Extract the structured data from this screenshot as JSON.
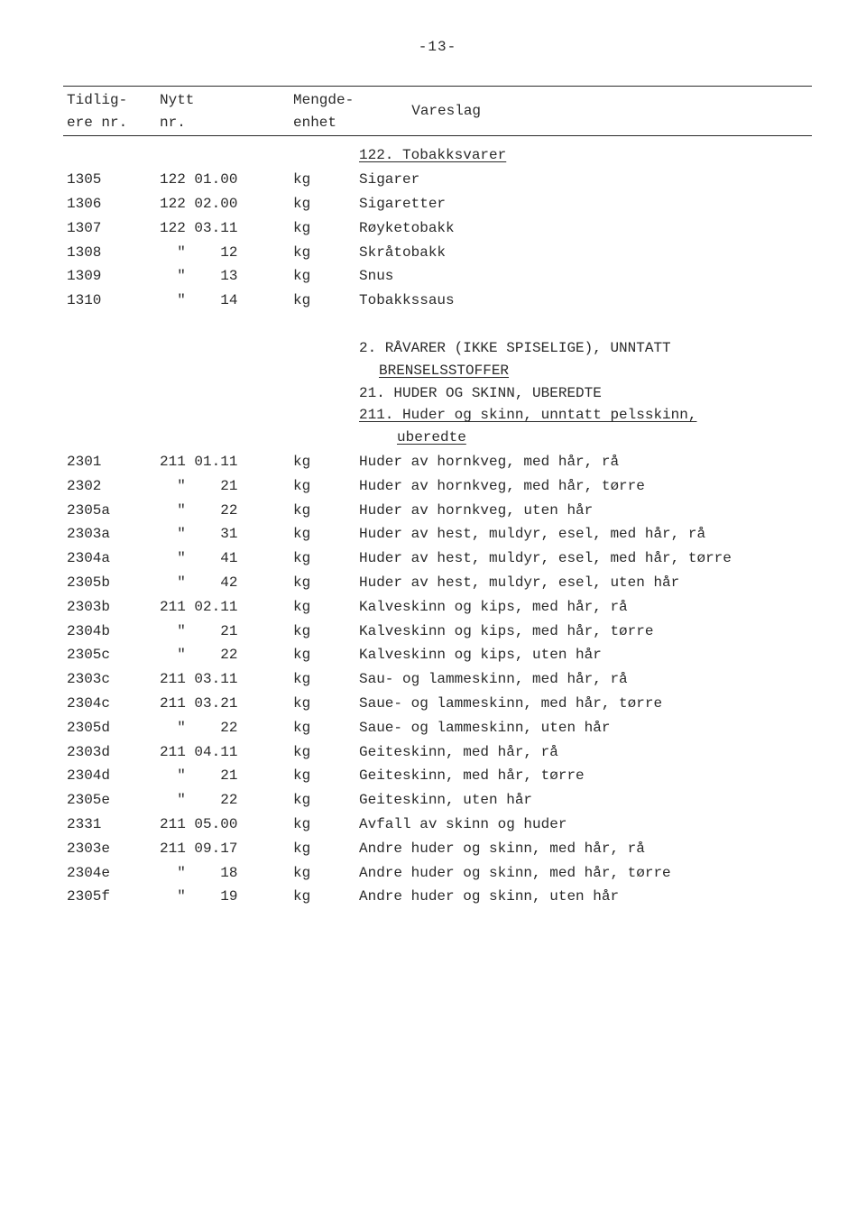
{
  "page_number": "-13-",
  "header": {
    "col1_line1": "Tidlig-",
    "col1_line2": "ere nr.",
    "col2_line1": "Nytt",
    "col2_line2": "nr.",
    "col3_line1": "Mengde-",
    "col3_line2": "enhet",
    "col4": "Vareslag"
  },
  "section1_title": "122. Tobakksvarer",
  "rows1": [
    {
      "t": "1305",
      "n": "122 01.00",
      "e": "kg",
      "v": "Sigarer"
    },
    {
      "t": "1306",
      "n": "122 02.00",
      "e": "kg",
      "v": "Sigaretter"
    },
    {
      "t": "1307",
      "n": "122 03.11",
      "e": "kg",
      "v": "Røyketobakk"
    },
    {
      "t": "1308",
      "n": "\"     12",
      "e": "kg",
      "v": "Skråtobakk"
    },
    {
      "t": "1309",
      "n": "\"     13",
      "e": "kg",
      "v": "Snus"
    },
    {
      "t": "1310",
      "n": "\"     14",
      "e": "kg",
      "v": "Tobakkssaus"
    }
  ],
  "section2": {
    "l1a": "2. RÅVARER (IKKE SPISELIGE), UNNTATT",
    "l1b": "BRENSELSSTOFFER",
    "l2": "21. HUDER OG SKINN, UBEREDTE",
    "l3": "211. Huder og skinn, unntatt pelsskinn,",
    "l3b": "uberedte"
  },
  "rows2": [
    {
      "t": "2301",
      "n": "211 01.11",
      "e": "kg",
      "v": "Huder av hornkveg, med hår, rå"
    },
    {
      "t": "2302",
      "n": "\"     21",
      "e": "kg",
      "v": "Huder av hornkveg, med hår, tørre"
    },
    {
      "t": "2305a",
      "n": "\"     22",
      "e": "kg",
      "v": "Huder av hornkveg, uten hår"
    },
    {
      "t": "2303a",
      "n": "\"     31",
      "e": "kg",
      "v": "Huder av hest, muldyr, esel, med hår, rå"
    },
    {
      "t": "2304a",
      "n": "\"     41",
      "e": "kg",
      "v": "Huder av hest, muldyr, esel, med hår, tørre"
    },
    {
      "t": "2305b",
      "n": "\"     42",
      "e": "kg",
      "v": "Huder av hest, muldyr, esel, uten hår"
    },
    {
      "t": "2303b",
      "n": "211 02.11",
      "e": "kg",
      "v": "Kalveskinn og kips, med hår, rå"
    },
    {
      "t": "2304b",
      "n": "\"     21",
      "e": "kg",
      "v": "Kalveskinn og kips, med hår, tørre"
    },
    {
      "t": "2305c",
      "n": "\"     22",
      "e": "kg",
      "v": "Kalveskinn og kips, uten hår"
    },
    {
      "t": "2303c",
      "n": "211 03.11",
      "e": "kg",
      "v": "Sau- og lammeskinn, med hår, rå"
    },
    {
      "t": "2304c",
      "n": "211 03.21",
      "e": "kg",
      "v": "Saue- og lammeskinn, med hår, tørre"
    },
    {
      "t": "2305d",
      "n": "\"     22",
      "e": "kg",
      "v": "Saue- og lammeskinn, uten hår"
    },
    {
      "t": "2303d",
      "n": "211 04.11",
      "e": "kg",
      "v": "Geiteskinn, med hår, rå"
    },
    {
      "t": "2304d",
      "n": "\"     21",
      "e": "kg",
      "v": "Geiteskinn, med hår, tørre"
    },
    {
      "t": "2305e",
      "n": "\"     22",
      "e": "kg",
      "v": "Geiteskinn, uten hår"
    },
    {
      "t": "2331",
      "n": "211 05.00",
      "e": "kg",
      "v": "Avfall av skinn og huder"
    },
    {
      "t": "2303e",
      "n": "211 09.17",
      "e": "kg",
      "v": "Andre huder og skinn, med hår, rå"
    },
    {
      "t": "2304e",
      "n": "\"     18",
      "e": "kg",
      "v": "Andre huder og skinn, med hår, tørre"
    },
    {
      "t": "2305f",
      "n": "\"     19",
      "e": "kg",
      "v": "Andre huder og skinn, uten hår"
    }
  ]
}
